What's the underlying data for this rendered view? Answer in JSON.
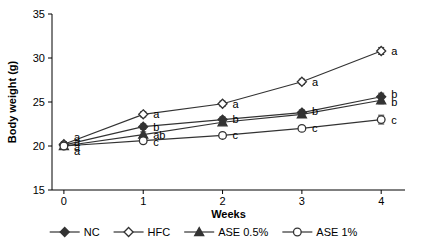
{
  "chart_data": {
    "type": "line",
    "x_label": "Weeks",
    "y_label": "Body weight (g)",
    "x": [
      0,
      1,
      2,
      3,
      4
    ],
    "xlim": [
      -0.15,
      4.3
    ],
    "xticks": [
      0,
      1,
      2,
      3,
      4
    ],
    "ylim": [
      15,
      35
    ],
    "yticks": [
      15,
      20,
      25,
      30,
      35
    ],
    "grid": false,
    "legend": "bottom",
    "series": [
      {
        "name": "NC",
        "color": "#333333",
        "marker": "diamond",
        "line_style": "solid",
        "values": [
          20.1,
          22.2,
          23.0,
          23.8,
          25.6
        ],
        "errors": [
          0.3,
          0.3,
          0.3,
          0.3,
          0.4
        ]
      },
      {
        "name": "HFC",
        "color": "#333333",
        "marker": "diamond-open",
        "line_style": "solid",
        "values": [
          20.2,
          23.6,
          24.8,
          27.3,
          30.8
        ],
        "errors": [
          0.3,
          0.3,
          0.3,
          0.3,
          0.4
        ]
      },
      {
        "name": "ASE 0.5%",
        "color": "#333333",
        "marker": "triangle",
        "line_style": "solid",
        "values": [
          20.0,
          21.3,
          22.7,
          23.6,
          25.2
        ],
        "errors": [
          0.3,
          0.3,
          0.3,
          0.3,
          0.4
        ]
      },
      {
        "name": "ASE 1%",
        "color": "#333333",
        "marker": "circle-open",
        "line_style": "solid",
        "values": [
          20.0,
          20.6,
          21.2,
          22.0,
          23.0
        ],
        "errors": [
          0.3,
          0.3,
          0.3,
          0.3,
          0.5
        ]
      }
    ],
    "annotations": [
      {
        "x": 0,
        "y": 21.0,
        "text": "a"
      },
      {
        "x": 0,
        "y": 20.4,
        "text": "a"
      },
      {
        "x": 0,
        "y": 19.9,
        "text": "a"
      },
      {
        "x": 0,
        "y": 19.4,
        "text": "a"
      },
      {
        "x": 1,
        "y": 23.6,
        "text": "a"
      },
      {
        "x": 1,
        "y": 22.2,
        "text": "b"
      },
      {
        "x": 1,
        "y": 21.3,
        "text": "ab"
      },
      {
        "x": 1,
        "y": 20.5,
        "text": "c"
      },
      {
        "x": 2,
        "y": 24.8,
        "text": "a"
      },
      {
        "x": 2,
        "y": 23.1,
        "text": "b"
      },
      {
        "x": 2,
        "y": 21.3,
        "text": "c"
      },
      {
        "x": 3,
        "y": 27.3,
        "text": "a"
      },
      {
        "x": 3,
        "y": 24.0,
        "text": "b"
      },
      {
        "x": 3,
        "y": 22.0,
        "text": "c"
      },
      {
        "x": 4,
        "y": 30.8,
        "text": "a"
      },
      {
        "x": 4,
        "y": 25.9,
        "text": "b"
      },
      {
        "x": 4,
        "y": 25.0,
        "text": "b"
      },
      {
        "x": 4,
        "y": 23.0,
        "text": "c"
      }
    ]
  }
}
